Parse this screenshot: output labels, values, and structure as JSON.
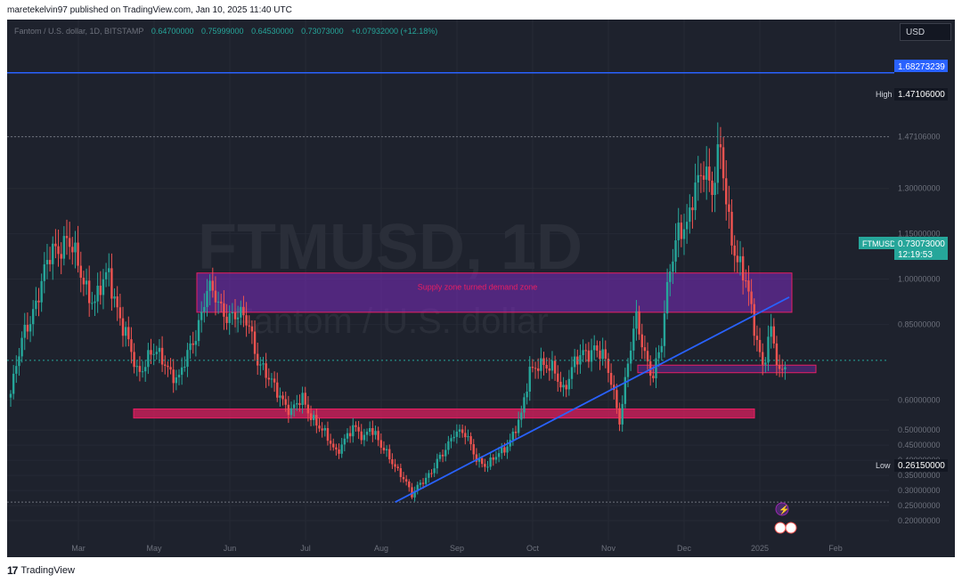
{
  "publish_line": "maretekelvin97 published on TradingView.com, Jan 10, 2025 11:40 UTC",
  "legend": {
    "symbol": "Fantom / U.S. dollar, 1D, BITSTAMP",
    "open": "0.64700000",
    "high": "0.75999000",
    "low": "0.64530000",
    "close": "0.73073000",
    "change": "+0.07932000 (+12.18%)"
  },
  "currency_button": "USD",
  "watermark": {
    "ticker": "FTMUSD, 1D",
    "name": "Fantom / U.S. dollar"
  },
  "footer": {
    "brand": "TradingView"
  },
  "price_labels": {
    "line_value": "1.68273239",
    "high_label": "High",
    "high_value": "1.47106000",
    "symbol_label": "FTMUSD",
    "last_price": "0.73073000",
    "countdown": "12:19:53",
    "low_label": "Low",
    "low_value": "0.26150000"
  },
  "colors": {
    "up": "#26a69a",
    "down": "#ef5350",
    "trendline": "#2962ff",
    "supply_zone": "#7b2cbf",
    "support_zone": "#e91e63",
    "background": "#1e222d"
  },
  "chart_data": {
    "type": "candlestick",
    "timeframe": "1D",
    "ylim": [
      0.15,
      1.8
    ],
    "x_tick_labels": [
      "Mar",
      "May",
      "Jun",
      "Jul",
      "Aug",
      "Sep",
      "Oct",
      "Nov",
      "Dec",
      "2025",
      "Feb"
    ],
    "y_tick_labels": [
      "1.47106000",
      "1.30000000",
      "1.15000000",
      "1.00000000",
      "0.85000000",
      "0.60000000",
      "0.50000000",
      "0.45000000",
      "0.40000000",
      "0.35000000",
      "0.30000000",
      "0.25000000",
      "0.20000000"
    ],
    "anchors": [
      {
        "i": 0,
        "v": 0.62
      },
      {
        "i": 5,
        "v": 0.83
      },
      {
        "i": 10,
        "v": 0.95
      },
      {
        "i": 15,
        "v": 1.1
      },
      {
        "i": 20,
        "v": 1.13
      },
      {
        "i": 25,
        "v": 1.02
      },
      {
        "i": 30,
        "v": 0.92
      },
      {
        "i": 35,
        "v": 1.02
      },
      {
        "i": 40,
        "v": 0.84
      },
      {
        "i": 45,
        "v": 0.69
      },
      {
        "i": 50,
        "v": 0.76
      },
      {
        "i": 55,
        "v": 0.72
      },
      {
        "i": 60,
        "v": 0.67
      },
      {
        "i": 65,
        "v": 0.79
      },
      {
        "i": 70,
        "v": 0.97
      },
      {
        "i": 75,
        "v": 0.9
      },
      {
        "i": 80,
        "v": 0.88
      },
      {
        "i": 85,
        "v": 0.85
      },
      {
        "i": 88,
        "v": 0.74
      },
      {
        "i": 92,
        "v": 0.66
      },
      {
        "i": 96,
        "v": 0.62
      },
      {
        "i": 100,
        "v": 0.56
      },
      {
        "i": 104,
        "v": 0.6
      },
      {
        "i": 108,
        "v": 0.54
      },
      {
        "i": 112,
        "v": 0.48
      },
      {
        "i": 116,
        "v": 0.43
      },
      {
        "i": 118,
        "v": 0.46
      },
      {
        "i": 122,
        "v": 0.5
      },
      {
        "i": 126,
        "v": 0.48
      },
      {
        "i": 128,
        "v": 0.52
      },
      {
        "i": 132,
        "v": 0.44
      },
      {
        "i": 136,
        "v": 0.4
      },
      {
        "i": 140,
        "v": 0.34
      },
      {
        "i": 143,
        "v": 0.28
      },
      {
        "i": 146,
        "v": 0.33
      },
      {
        "i": 150,
        "v": 0.36
      },
      {
        "i": 154,
        "v": 0.42
      },
      {
        "i": 158,
        "v": 0.5
      },
      {
        "i": 162,
        "v": 0.48
      },
      {
        "i": 166,
        "v": 0.41
      },
      {
        "i": 170,
        "v": 0.38
      },
      {
        "i": 174,
        "v": 0.42
      },
      {
        "i": 178,
        "v": 0.47
      },
      {
        "i": 182,
        "v": 0.54
      },
      {
        "i": 185,
        "v": 0.7
      },
      {
        "i": 188,
        "v": 0.73
      },
      {
        "i": 191,
        "v": 0.7
      },
      {
        "i": 194,
        "v": 0.69
      },
      {
        "i": 197,
        "v": 0.64
      },
      {
        "i": 200,
        "v": 0.7
      },
      {
        "i": 204,
        "v": 0.75
      },
      {
        "i": 208,
        "v": 0.78
      },
      {
        "i": 211,
        "v": 0.74
      },
      {
        "i": 214,
        "v": 0.66
      },
      {
        "i": 217,
        "v": 0.54
      },
      {
        "i": 220,
        "v": 0.72
      },
      {
        "i": 223,
        "v": 0.86
      },
      {
        "i": 226,
        "v": 0.76
      },
      {
        "i": 229,
        "v": 0.68
      },
      {
        "i": 232,
        "v": 0.78
      },
      {
        "i": 235,
        "v": 1.05
      },
      {
        "i": 238,
        "v": 1.18
      },
      {
        "i": 241,
        "v": 1.15
      },
      {
        "i": 244,
        "v": 1.3
      },
      {
        "i": 247,
        "v": 1.4
      },
      {
        "i": 250,
        "v": 1.28
      },
      {
        "i": 253,
        "v": 1.42
      },
      {
        "i": 256,
        "v": 1.2
      },
      {
        "i": 259,
        "v": 1.06
      },
      {
        "i": 262,
        "v": 0.98
      },
      {
        "i": 265,
        "v": 0.85
      },
      {
        "i": 268,
        "v": 0.72
      },
      {
        "i": 271,
        "v": 0.82
      },
      {
        "i": 274,
        "v": 0.68
      },
      {
        "i": 276,
        "v": 0.73
      }
    ],
    "annotations": [
      {
        "type": "zone",
        "label": "Supply zone turned demand zone",
        "from": 0.89,
        "to": 1.02
      },
      {
        "type": "zone",
        "label": "",
        "from": 0.54,
        "to": 0.57
      },
      {
        "type": "zone",
        "label": "",
        "from": 0.69,
        "to": 0.715
      },
      {
        "type": "hline",
        "value": 1.68273239
      },
      {
        "type": "trendline",
        "from_low": 0.2615
      }
    ]
  }
}
